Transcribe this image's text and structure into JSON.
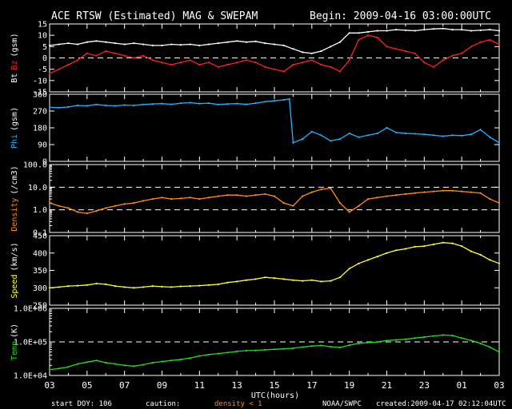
{
  "header": {
    "title": "ACE RTSW (Estimated) MAG & SWEPAM",
    "begin": "Begin: 2009-04-16 03:00:00UTC"
  },
  "footer": {
    "start_doy": "start DOY: 106",
    "caution": "caution:",
    "density_note": "density < 1",
    "source": "NOAA/SWPC",
    "created": "created:2009-04-17 02:12:04UTC"
  },
  "chart_data": {
    "type": "line",
    "title": "ACE RTSW (Estimated) MAG & SWEPAM",
    "xlabel": "UTC(hours)",
    "x_ticks": [
      "03",
      "05",
      "07",
      "09",
      "11",
      "13",
      "15",
      "17",
      "19",
      "21",
      "23",
      "01",
      "03"
    ],
    "x_range_hours": [
      0,
      24
    ],
    "colors": {
      "bt": "#ffffff",
      "bz": "#ff2020",
      "phi": "#20b4ff",
      "density": "#ff8c1a",
      "speed": "#ffff33",
      "temp": "#22dd22",
      "caution": "#ff8c1a"
    },
    "panels": [
      {
        "id": "mag",
        "ylabel_parts": [
          "Bt",
          "Bz",
          "(gsm)"
        ],
        "ylim": [
          -15,
          15
        ],
        "yticks": [
          15,
          10,
          5,
          0,
          -5,
          -10,
          -15
        ],
        "ref_lines": [
          0
        ],
        "series": [
          {
            "name": "Bt",
            "color": "#ffffff",
            "x": [
              0,
              0.5,
              1,
              1.5,
              2,
              2.5,
              3,
              3.5,
              4,
              4.5,
              5,
              5.5,
              6,
              6.5,
              7,
              7.5,
              8,
              8.5,
              9,
              9.5,
              10,
              10.5,
              11,
              11.5,
              12,
              12.5,
              13,
              13.5,
              14,
              14.5,
              15,
              15.5,
              16,
              16.5,
              17,
              17.5,
              18,
              18.5,
              19,
              19.5,
              20,
              20.5,
              21,
              21.5,
              22,
              22.5,
              23,
              23.5,
              24
            ],
            "y": [
              5.5,
              6,
              6.5,
              6,
              7,
              7.5,
              7,
              6.5,
              6,
              6.5,
              6,
              5.5,
              5.5,
              6,
              5.8,
              6,
              5.5,
              6,
              6.5,
              7,
              7.5,
              7,
              7.3,
              6.5,
              6,
              5.5,
              4,
              2.5,
              2,
              3,
              5,
              7,
              11,
              11,
              11.5,
              12,
              12,
              12.5,
              12.2,
              12,
              12.5,
              12.8,
              13,
              12.5,
              12.5,
              12,
              12.2,
              12.5,
              12
            ]
          },
          {
            "name": "Bz",
            "color": "#ff2020",
            "x": [
              0,
              0.5,
              1,
              1.5,
              2,
              2.5,
              3,
              3.5,
              4,
              4.5,
              5,
              5.5,
              6,
              6.5,
              7,
              7.5,
              8,
              8.5,
              9,
              9.5,
              10,
              10.5,
              11,
              11.5,
              12,
              12.5,
              13,
              13.5,
              14,
              14.5,
              15,
              15.5,
              16,
              16.5,
              17,
              17.5,
              18,
              18.5,
              19,
              19.5,
              20,
              20.5,
              21,
              21.5,
              22,
              22.5,
              23,
              23.5,
              24
            ],
            "y": [
              -7,
              -5,
              -3,
              -1,
              2,
              1,
              3,
              2,
              1,
              0,
              1,
              -1,
              -2,
              -3,
              -2,
              -1,
              -3,
              -2,
              -4,
              -3,
              -2,
              -1,
              -2,
              -4,
              -5,
              -6,
              -3,
              -2,
              -1,
              -3,
              -4,
              -6,
              -1,
              8,
              10,
              9,
              5,
              4,
              3,
              2,
              -2,
              -4,
              -1,
              1,
              2,
              5,
              7,
              8,
              6
            ]
          }
        ]
      },
      {
        "id": "phi",
        "ylabel_parts": [
          "Phi",
          "(gsm)"
        ],
        "ylim": [
          0,
          360
        ],
        "yticks": [
          360,
          270,
          180,
          90,
          0
        ],
        "ref_lines": [],
        "series": [
          {
            "name": "Phi",
            "color": "#20b4ff",
            "x": [
              0,
              0.5,
              1,
              1.5,
              2,
              2.5,
              3,
              3.5,
              4,
              4.5,
              5,
              5.5,
              6,
              6.5,
              7,
              7.5,
              8,
              8.5,
              9,
              9.5,
              10,
              10.5,
              11,
              11.5,
              12,
              12.5,
              12.8,
              13,
              13.5,
              14,
              14.5,
              15,
              15.5,
              16,
              16.5,
              17,
              17.5,
              18,
              18.5,
              19,
              19.5,
              20,
              20.5,
              21,
              21.5,
              22,
              22.5,
              23,
              23.5,
              24
            ],
            "y": [
              290,
              288,
              292,
              300,
              298,
              305,
              300,
              298,
              302,
              300,
              305,
              308,
              310,
              306,
              312,
              315,
              310,
              312,
              305,
              308,
              310,
              306,
              312,
              320,
              325,
              330,
              335,
              100,
              120,
              160,
              140,
              110,
              120,
              150,
              130,
              140,
              150,
              180,
              155,
              150,
              148,
              145,
              140,
              135,
              140,
              138,
              145,
              170,
              130,
              100
            ]
          }
        ]
      },
      {
        "id": "density",
        "ylabel_parts": [
          "Density",
          "(/cm3)"
        ],
        "log": true,
        "ylim": [
          0.1,
          100
        ],
        "yticks": [
          "100.0",
          "10.0",
          "1.0",
          "0.1"
        ],
        "ref_lines": [
          10,
          1
        ],
        "series": [
          {
            "name": "Density",
            "color": "#ff8c1a",
            "x": [
              0,
              0.5,
              1,
              1.5,
              2,
              2.5,
              3,
              3.5,
              4,
              4.5,
              5,
              5.5,
              6,
              6.5,
              7,
              7.5,
              8,
              8.5,
              9,
              9.5,
              10,
              10.5,
              11,
              11.5,
              12,
              12.5,
              13,
              13.5,
              14,
              14.5,
              15,
              15.5,
              16,
              16.5,
              17,
              17.5,
              18,
              18.5,
              19,
              19.5,
              20,
              20.5,
              21,
              21.5,
              22,
              22.5,
              23,
              23.5,
              24
            ],
            "y": [
              2,
              1.5,
              1.2,
              0.8,
              0.7,
              0.9,
              1.2,
              1.5,
              1.8,
              2,
              2.5,
              3,
              3.5,
              3,
              3.2,
              3.5,
              3,
              3.5,
              4,
              4.5,
              4.5,
              4,
              4.5,
              5,
              4,
              2,
              1.5,
              4,
              6,
              8,
              9,
              2,
              0.8,
              1.5,
              3,
              3.5,
              4,
              4.5,
              5,
              5.5,
              6,
              6.5,
              7,
              7,
              6.5,
              6,
              5.5,
              3,
              2
            ]
          }
        ]
      },
      {
        "id": "speed",
        "ylabel_parts": [
          "Speed",
          "(km/s)"
        ],
        "ylim": [
          250,
          450
        ],
        "yticks": [
          450,
          400,
          350,
          300,
          250
        ],
        "ref_lines": [],
        "series": [
          {
            "name": "Speed",
            "color": "#ffff33",
            "x": [
              0,
              0.5,
              1,
              1.5,
              2,
              2.5,
              3,
              3.5,
              4,
              4.5,
              5,
              5.5,
              6,
              6.5,
              7,
              7.5,
              8,
              8.5,
              9,
              9.5,
              10,
              10.5,
              11,
              11.5,
              12,
              12.5,
              13,
              13.5,
              14,
              14.5,
              15,
              15.5,
              16,
              16.5,
              17,
              17.5,
              18,
              18.5,
              19,
              19.5,
              20,
              20.5,
              21,
              21.5,
              22,
              22.5,
              23,
              23.5,
              24
            ],
            "y": [
              300,
              302,
              305,
              306,
              308,
              312,
              310,
              305,
              302,
              300,
              302,
              305,
              303,
              302,
              304,
              305,
              306,
              308,
              310,
              315,
              318,
              322,
              325,
              330,
              328,
              325,
              322,
              320,
              322,
              318,
              320,
              330,
              355,
              370,
              380,
              390,
              400,
              408,
              412,
              418,
              420,
              425,
              430,
              428,
              420,
              405,
              395,
              380,
              370
            ]
          }
        ]
      },
      {
        "id": "temp",
        "ylabel_parts": [
          "Temp",
          "(K)"
        ],
        "log": true,
        "ylim": [
          10000,
          1000000
        ],
        "yticks": [
          "1.0E+06",
          "1.0E+05",
          "1.0E+04"
        ],
        "ref_lines": [
          100000
        ],
        "series": [
          {
            "name": "Temp",
            "color": "#22dd22",
            "x": [
              0,
              0.5,
              1,
              1.5,
              2,
              2.5,
              3,
              3.5,
              4,
              4.5,
              5,
              5.5,
              6,
              6.5,
              7,
              7.5,
              8,
              8.5,
              9,
              9.5,
              10,
              10.5,
              11,
              11.5,
              12,
              12.5,
              13,
              13.5,
              14,
              14.5,
              15,
              15.5,
              16,
              16.5,
              17,
              17.5,
              18,
              18.5,
              19,
              19.5,
              20,
              20.5,
              21,
              21.5,
              22,
              22.5,
              23,
              23.5,
              24
            ],
            "y": [
              15000,
              16000,
              18000,
              22000,
              25000,
              28000,
              24000,
              22000,
              20000,
              19000,
              21000,
              24000,
              26000,
              28000,
              30000,
              33000,
              38000,
              42000,
              45000,
              48000,
              52000,
              55000,
              56000,
              58000,
              60000,
              62000,
              65000,
              70000,
              75000,
              78000,
              72000,
              68000,
              80000,
              90000,
              95000,
              100000,
              110000,
              115000,
              120000,
              130000,
              140000,
              150000,
              160000,
              155000,
              130000,
              110000,
              90000,
              70000,
              50000
            ]
          }
        ]
      }
    ]
  }
}
